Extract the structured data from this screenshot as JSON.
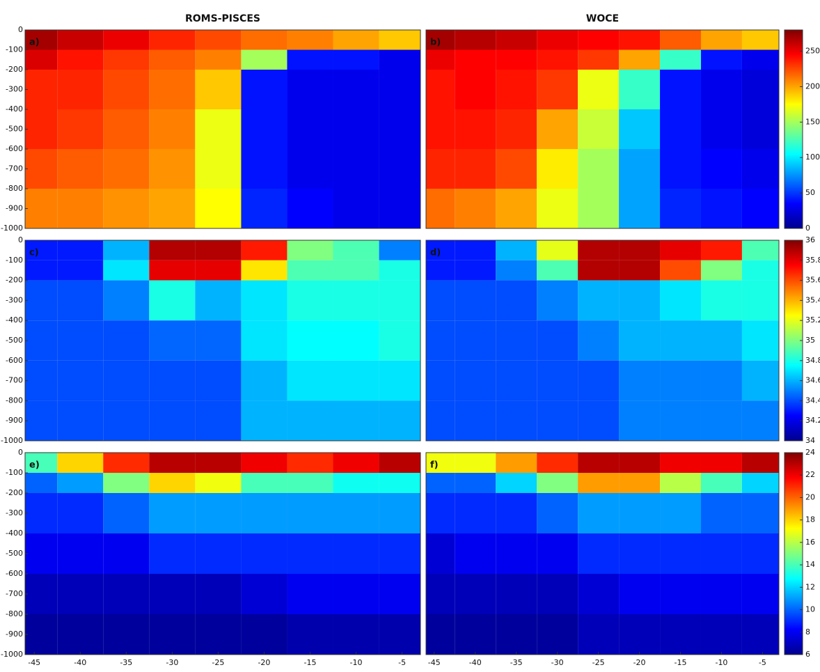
{
  "chart_data": [
    {
      "type": "heatmap",
      "title": "ROMS-PISCES",
      "label": "a)",
      "colormap": "jet",
      "xlim": [
        -46,
        -3
      ],
      "ylim": [
        -1000,
        0
      ],
      "yticks": [
        0,
        -100,
        -200,
        -300,
        -400,
        -500,
        -600,
        -700,
        -800,
        -900,
        -1000
      ],
      "xbins": [
        -46,
        -42.5,
        -37.5,
        -32.5,
        -27.5,
        -22.5,
        -17.5,
        -12.5,
        -7.5,
        -3
      ],
      "ybins": [
        0,
        -100,
        -200,
        -400,
        -600,
        -800,
        -1000
      ],
      "clim": [
        0,
        280
      ],
      "z": [
        [
          270,
          260,
          250,
          235,
          225,
          215,
          210,
          200,
          190
        ],
        [
          255,
          240,
          230,
          220,
          210,
          150,
          40,
          40,
          30
        ],
        [
          235,
          235,
          225,
          215,
          190,
          40,
          30,
          30,
          30
        ],
        [
          235,
          230,
          220,
          210,
          170,
          40,
          30,
          30,
          30
        ],
        [
          225,
          220,
          215,
          205,
          170,
          40,
          30,
          30,
          30
        ],
        [
          210,
          210,
          205,
          200,
          175,
          45,
          35,
          30,
          30
        ]
      ]
    },
    {
      "type": "heatmap",
      "title": "WOCE",
      "label": "b)",
      "colormap": "jet",
      "xlim": [
        -46,
        -3
      ],
      "ylim": [
        -1000,
        0
      ],
      "xbins": [
        -46,
        -42.5,
        -37.5,
        -32.5,
        -27.5,
        -22.5,
        -17.5,
        -12.5,
        -7.5,
        -3
      ],
      "ybins": [
        0,
        -100,
        -200,
        -400,
        -600,
        -800,
        -1000
      ],
      "clim": [
        0,
        280
      ],
      "cticks": [
        0,
        50,
        100,
        150,
        200,
        250
      ],
      "z": [
        [
          270,
          265,
          260,
          250,
          245,
          240,
          220,
          200,
          190
        ],
        [
          250,
          245,
          245,
          240,
          230,
          200,
          120,
          40,
          30
        ],
        [
          240,
          245,
          240,
          230,
          170,
          120,
          40,
          30,
          25
        ],
        [
          240,
          240,
          235,
          200,
          160,
          90,
          40,
          30,
          25
        ],
        [
          235,
          235,
          225,
          180,
          150,
          80,
          40,
          35,
          30
        ],
        [
          215,
          210,
          200,
          170,
          150,
          80,
          45,
          40,
          35
        ]
      ]
    },
    {
      "type": "heatmap",
      "label": "c)",
      "colormap": "jet",
      "xlim": [
        -46,
        -3
      ],
      "ylim": [
        -1000,
        0
      ],
      "yticks": [
        0,
        -100,
        -200,
        -300,
        -400,
        -500,
        -600,
        -700,
        -800,
        -900,
        -1000
      ],
      "xbins": [
        -46,
        -42.5,
        -37.5,
        -32.5,
        -27.5,
        -22.5,
        -17.5,
        -12.5,
        -7.5,
        -3
      ],
      "ybins": [
        0,
        -100,
        -200,
        -400,
        -600,
        -800,
        -1000
      ],
      "clim": [
        34,
        36
      ],
      "z": [
        [
          34.3,
          34.3,
          34.6,
          35.9,
          35.9,
          35.7,
          35.0,
          34.9,
          34.5
        ],
        [
          34.3,
          34.3,
          34.7,
          35.8,
          35.8,
          35.3,
          34.9,
          34.9,
          34.8
        ],
        [
          34.4,
          34.4,
          34.5,
          34.8,
          34.6,
          34.7,
          34.8,
          34.8,
          34.8
        ],
        [
          34.4,
          34.4,
          34.4,
          34.45,
          34.45,
          34.7,
          34.75,
          34.75,
          34.8
        ],
        [
          34.4,
          34.4,
          34.4,
          34.4,
          34.4,
          34.6,
          34.7,
          34.7,
          34.7
        ],
        [
          34.4,
          34.4,
          34.4,
          34.4,
          34.4,
          34.6,
          34.6,
          34.6,
          34.6
        ]
      ]
    },
    {
      "type": "heatmap",
      "label": "d)",
      "colormap": "jet",
      "xlim": [
        -46,
        -3
      ],
      "ylim": [
        -1000,
        0
      ],
      "xbins": [
        -46,
        -42.5,
        -37.5,
        -32.5,
        -27.5,
        -22.5,
        -17.5,
        -12.5,
        -7.5,
        -3
      ],
      "ybins": [
        0,
        -100,
        -200,
        -400,
        -600,
        -800,
        -1000
      ],
      "clim": [
        34,
        36
      ],
      "cticks": [
        34,
        34.2,
        34.4,
        34.6,
        34.8,
        35,
        35.2,
        35.4,
        35.6,
        35.8,
        36
      ],
      "z": [
        [
          34.3,
          34.3,
          34.6,
          35.2,
          35.9,
          35.9,
          35.8,
          35.7,
          34.9
        ],
        [
          34.3,
          34.3,
          34.5,
          34.9,
          35.9,
          35.9,
          35.6,
          35.0,
          34.8
        ],
        [
          34.4,
          34.4,
          34.4,
          34.5,
          34.6,
          34.6,
          34.7,
          34.8,
          34.8
        ],
        [
          34.4,
          34.4,
          34.4,
          34.4,
          34.5,
          34.6,
          34.6,
          34.6,
          34.7
        ],
        [
          34.4,
          34.4,
          34.4,
          34.4,
          34.4,
          34.5,
          34.5,
          34.5,
          34.6
        ],
        [
          34.4,
          34.4,
          34.4,
          34.4,
          34.4,
          34.5,
          34.5,
          34.5,
          34.5
        ]
      ]
    },
    {
      "type": "heatmap",
      "label": "e)",
      "colormap": "jet",
      "xlim": [
        -46,
        -3
      ],
      "ylim": [
        -1000,
        0
      ],
      "xticks": [
        -45,
        -40,
        -35,
        -30,
        -25,
        -20,
        -15,
        -10,
        -5
      ],
      "yticks": [
        0,
        -100,
        -200,
        -300,
        -400,
        -500,
        -600,
        -700,
        -800,
        -900,
        -1000
      ],
      "xbins": [
        -46,
        -42.5,
        -37.5,
        -32.5,
        -27.5,
        -22.5,
        -17.5,
        -12.5,
        -7.5,
        -3
      ],
      "ybins": [
        0,
        -100,
        -200,
        -400,
        -600,
        -800,
        -1000
      ],
      "clim": [
        6,
        24
      ],
      "z": [
        [
          14,
          18,
          21,
          23,
          23,
          22,
          21,
          22,
          23
        ],
        [
          10,
          11,
          15,
          18,
          17,
          14,
          14,
          13,
          13
        ],
        [
          9,
          9,
          10,
          11,
          11,
          11,
          11,
          11,
          11
        ],
        [
          8,
          8,
          8,
          9,
          9,
          9,
          9,
          9,
          9
        ],
        [
          7,
          7,
          7,
          7,
          7,
          7.5,
          8,
          8,
          8
        ],
        [
          6.5,
          6.5,
          6.5,
          6.5,
          6.5,
          6.5,
          6.8,
          6.8,
          6.8
        ]
      ]
    },
    {
      "type": "heatmap",
      "label": "f)",
      "colormap": "jet",
      "xlim": [
        -46,
        -3
      ],
      "ylim": [
        -1000,
        0
      ],
      "xticks": [
        -45,
        -40,
        -35,
        -30,
        -25,
        -20,
        -15,
        -10,
        -5
      ],
      "xbins": [
        -46,
        -42.5,
        -37.5,
        -32.5,
        -27.5,
        -22.5,
        -17.5,
        -12.5,
        -7.5,
        -3
      ],
      "ybins": [
        0,
        -100,
        -200,
        -400,
        -600,
        -800,
        -1000
      ],
      "clim": [
        6,
        24
      ],
      "cticks": [
        6,
        8,
        10,
        12,
        14,
        16,
        18,
        20,
        22,
        24
      ],
      "z": [
        [
          17,
          17,
          19,
          21,
          23,
          23,
          22,
          22,
          23
        ],
        [
          10,
          10,
          12,
          15,
          19,
          19,
          16,
          14,
          12
        ],
        [
          9,
          9,
          9,
          10,
          11,
          11,
          11,
          10,
          10
        ],
        [
          7.5,
          8,
          8,
          8,
          9,
          9,
          9,
          9,
          9
        ],
        [
          7,
          7,
          7,
          7,
          7.5,
          8,
          8,
          8,
          8
        ],
        [
          6.5,
          6.5,
          6.5,
          6.5,
          7,
          7,
          7,
          7,
          7
        ]
      ]
    }
  ]
}
